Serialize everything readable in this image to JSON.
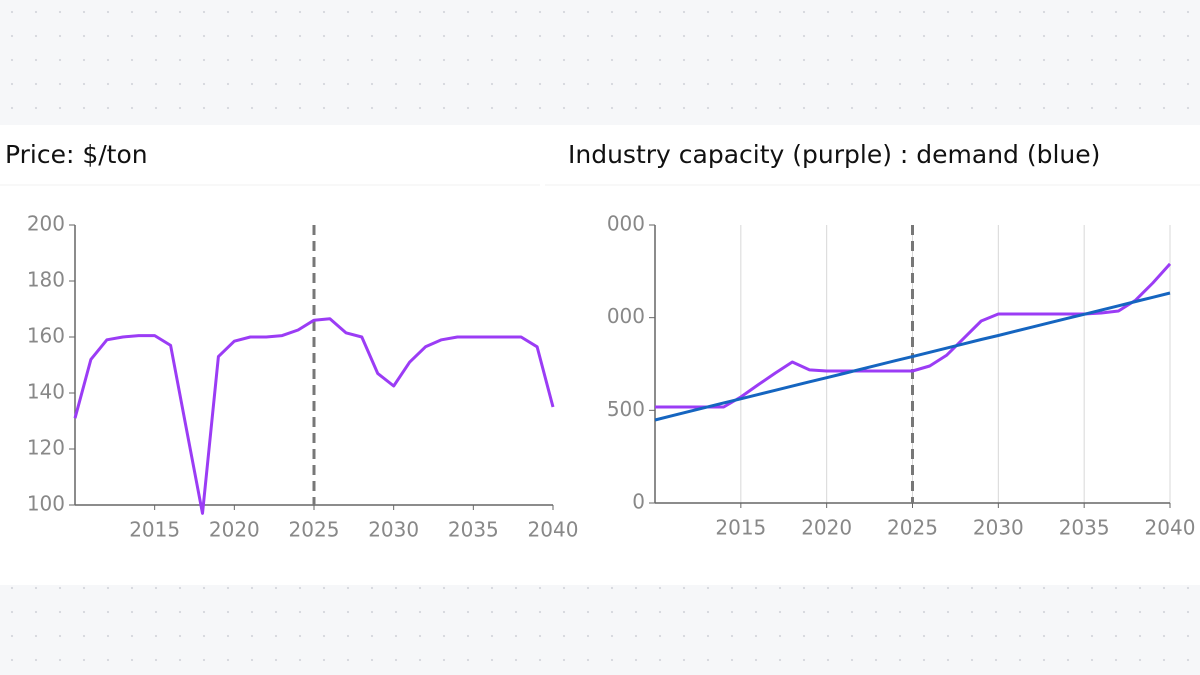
{
  "chart_data": [
    {
      "type": "line",
      "title": "Price: $/ton",
      "x": [
        2010,
        2011,
        2012,
        2013,
        2014,
        2015,
        2016,
        2017,
        2018,
        2019,
        2020,
        2021,
        2022,
        2023,
        2024,
        2025,
        2026,
        2027,
        2028,
        2029,
        2030,
        2031,
        2032,
        2033,
        2034,
        2035,
        2036,
        2037,
        2038,
        2039,
        2040
      ],
      "series": [
        {
          "color": "#9b3cf5",
          "values": [
            131,
            152,
            159,
            160,
            160.5,
            160.5,
            157,
            127,
            97,
            153,
            158.5,
            160,
            160,
            160.5,
            162.5,
            166,
            166.5,
            161.5,
            160,
            147,
            142.5,
            151,
            156.5,
            159,
            160,
            160,
            160,
            160,
            160,
            156.5,
            135
          ]
        }
      ],
      "xlim": [
        2010,
        2040
      ],
      "xticks": [
        2015,
        2020,
        2025,
        2030,
        2035,
        2040
      ],
      "ylim": [
        100,
        200
      ],
      "yticks": [
        100,
        120,
        140,
        160,
        180,
        200
      ],
      "grid": false,
      "marker_x": 2025
    },
    {
      "type": "line",
      "title": "Industry capacity (purple) : demand (blue)",
      "x": [
        2010,
        2011,
        2012,
        2013,
        2014,
        2015,
        2016,
        2017,
        2018,
        2019,
        2020,
        2021,
        2022,
        2023,
        2024,
        2025,
        2026,
        2027,
        2028,
        2029,
        2030,
        2031,
        2032,
        2033,
        2034,
        2035,
        2036,
        2037,
        2038,
        2039,
        2040
      ],
      "series": [
        {
          "color": "#9b3cf5",
          "values": [
            518,
            518,
            518,
            518,
            518,
            572,
            637,
            701,
            761,
            718,
            712,
            712,
            712,
            712,
            712,
            712,
            739,
            798,
            890,
            982,
            1020,
            1020,
            1020,
            1020,
            1020,
            1020,
            1025,
            1036,
            1095,
            1187,
            1290
          ]
        },
        {
          "color": "#1565c0",
          "values": [
            448,
            471,
            494,
            517,
            540,
            562,
            585,
            608,
            631,
            654,
            676,
            699,
            722,
            745,
            768,
            790,
            813,
            836,
            859,
            882,
            904,
            927,
            950,
            973,
            996,
            1018,
            1041,
            1064,
            1087,
            1110,
            1133
          ]
        }
      ],
      "xlim": [
        2010,
        2040
      ],
      "xticks": [
        2015,
        2020,
        2025,
        2030,
        2035,
        2040
      ],
      "ylim": [
        0,
        1500
      ],
      "yticks": [
        0,
        500,
        {
          "value": 1000,
          "label": "000"
        },
        {
          "value": 1500,
          "label": "000"
        }
      ],
      "grid": true,
      "marker_x": 2025
    }
  ]
}
